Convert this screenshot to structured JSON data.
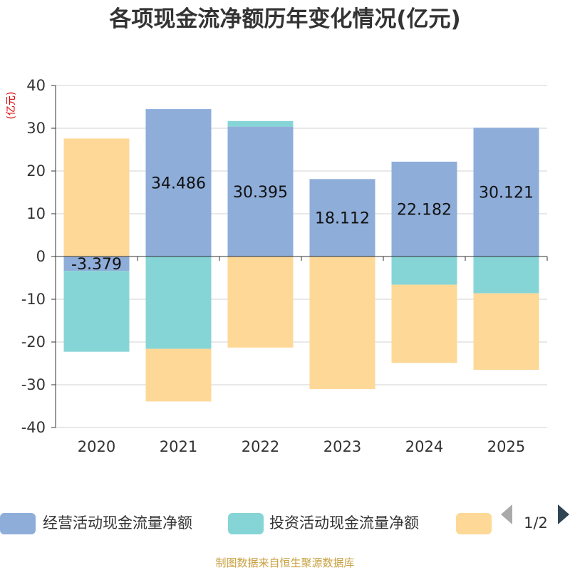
{
  "chart_data": {
    "type": "bar",
    "stacked": true,
    "title": "各项现金流净额历年变化情况(亿元)",
    "ylabel": "(亿元)",
    "ylim": [
      -40,
      40
    ],
    "yticks": [
      40,
      30,
      20,
      10,
      0,
      -10,
      -20,
      -30,
      -40
    ],
    "categories": [
      "2020",
      "2021",
      "2022",
      "2023",
      "2024",
      "2025"
    ],
    "series": [
      {
        "name": "经营活动现金流量净额",
        "color": "#8eadd9",
        "values": [
          -3.379,
          34.486,
          30.395,
          18.112,
          22.182,
          30.121
        ],
        "labels": [
          "-3.379",
          "34.486",
          "30.395",
          "18.112",
          "22.182",
          "30.121"
        ]
      },
      {
        "name": "投资活动现金流量净额",
        "color": "#86d5d6",
        "values": [
          -18.9,
          -21.6,
          1.3,
          0,
          -6.6,
          -8.6
        ]
      },
      {
        "name": "",
        "color": "#fdd897",
        "values": [
          27.6,
          -12.3,
          -21.3,
          -31,
          -18.3,
          -17.9
        ]
      }
    ],
    "legend": {
      "position": "bottom",
      "page": "1/2"
    },
    "source": "制图数据来自恒生聚源数据库"
  }
}
